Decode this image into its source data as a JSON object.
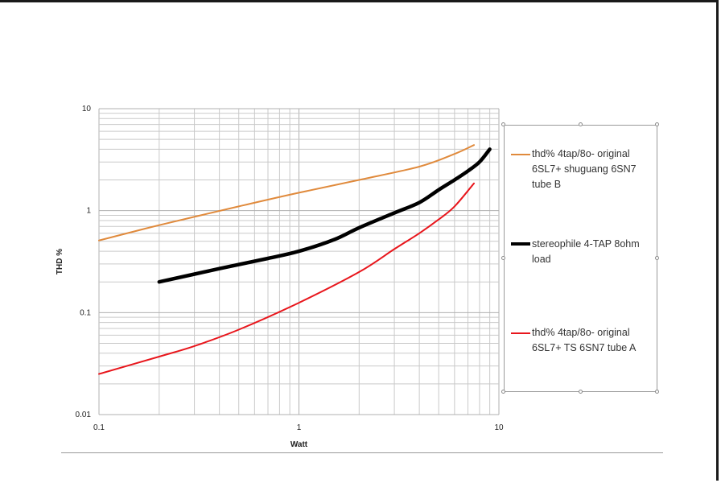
{
  "chart_data": {
    "type": "line",
    "xscale": "log",
    "yscale": "log",
    "xlim": [
      0.1,
      10
    ],
    "ylim": [
      0.01,
      10
    ],
    "xlabel": "Watt",
    "ylabel": "THD %",
    "x_tick_labels": [
      "0.1",
      "1",
      "10"
    ],
    "y_tick_labels": [
      "0.01",
      "0.1",
      "1",
      "10"
    ],
    "grid": true,
    "legend_position": "right",
    "series": [
      {
        "name": "thd% 4tap/8o- original 6SL7+ shuguang 6SN7 tube B",
        "color": "#e08a3c",
        "x": [
          0.1,
          0.2,
          0.5,
          1,
          2,
          4,
          6,
          7.5
        ],
        "y": [
          0.51,
          0.72,
          1.1,
          1.5,
          2.0,
          2.7,
          3.6,
          4.4
        ]
      },
      {
        "name": "stereophile 4-TAP 8ohm load",
        "color": "#000000",
        "x": [
          0.2,
          0.4,
          0.7,
          1,
          1.5,
          2,
          3,
          4,
          5,
          6,
          7,
          8,
          9
        ],
        "y": [
          0.2,
          0.27,
          0.34,
          0.4,
          0.52,
          0.68,
          0.95,
          1.2,
          1.6,
          2.0,
          2.45,
          3.0,
          4.0
        ]
      },
      {
        "name": "thd% 4tap/8o- original 6SL7+ TS 6SN7 tube A",
        "color": "#e8161c",
        "x": [
          0.1,
          0.2,
          0.3,
          0.5,
          1,
          2,
          3,
          4,
          5,
          6,
          7.5
        ],
        "y": [
          0.025,
          0.037,
          0.047,
          0.068,
          0.125,
          0.25,
          0.42,
          0.6,
          0.82,
          1.1,
          1.85
        ]
      }
    ]
  }
}
